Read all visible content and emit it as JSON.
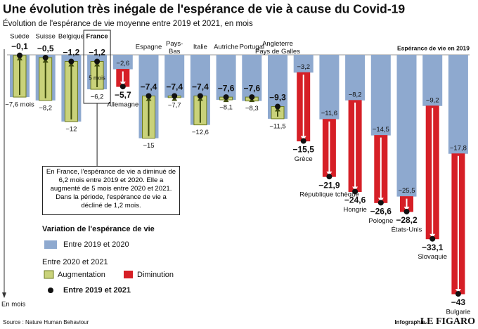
{
  "chart_data": {
    "type": "bar",
    "title": "Une évolution très inégale de l'espérance de vie à cause du Covid-19",
    "subtitle": "Évolution de l'espérance de vie moyenne entre 2019 et 2021, en mois",
    "categories": [
      "Suède",
      "Suisse",
      "Belgique",
      "France",
      "Allemagne",
      "Espagne",
      "Pays-Bas",
      "Italie",
      "Autriche",
      "Portugal",
      "Angleterre Pays de Galles",
      "Grèce",
      "République tchèque",
      "Hongrie",
      "Pologne",
      "États-Unis",
      "Slovaquie",
      "Bulgarie"
    ],
    "series": [
      {
        "name": "Entre 2019 et 2020",
        "color": "#8ea9cf",
        "values": [
          -7.6,
          -8.2,
          -12,
          -6.2,
          -2.6,
          -15,
          -7.7,
          -12.6,
          -8.1,
          -8.3,
          -11.5,
          -3.2,
          -11.6,
          -8.2,
          -14.5,
          -25.5,
          -9.2,
          -17.8
        ],
        "value_labels": [
          "−7,6 mois",
          "−8,2",
          "−12",
          "−6,2",
          "−2,6",
          "−15",
          "−7,7",
          "−12,6",
          "−8,1",
          "−8,3",
          "−11,5",
          "−3,2",
          "−11,6",
          "−8,2",
          "−14,5",
          "−25,5",
          "−9,2",
          "−17,8"
        ]
      },
      {
        "name": "Entre 2019 et 2021",
        "color": "#111111",
        "values": [
          -0.1,
          -0.5,
          -1.2,
          -1.2,
          -5.7,
          -7.4,
          -7.4,
          -7.4,
          -7.6,
          -7.6,
          -9.3,
          -15.5,
          -21.9,
          -24.6,
          -26.6,
          -28.2,
          -33.1,
          -43
        ],
        "value_labels": [
          "−0,1",
          "−0,5",
          "−1,2",
          "−1,2",
          "−5,7",
          "−7,4",
          "−7,4",
          "−7,4",
          "−7,6",
          "−7,6",
          "−9,3",
          "−15,5",
          "−21,9",
          "−24,6",
          "−26,6",
          "−28,2",
          "−33,1",
          "−43"
        ]
      }
    ],
    "ylim": [
      -43,
      0
    ],
    "legend": {
      "title": "Variation de l'espérance de vie",
      "subtitle": "Entre 2020 et 2021",
      "increase": {
        "name": "Augmentation",
        "color": "#c9d27a"
      },
      "decrease": {
        "name": "Diminution",
        "color": "#d61f26"
      }
    },
    "annotations": [
      "5 mois",
      "En France, l'espérance de vie a diminué de 6,2 mois entre 2019 et 2020. Elle a augmenté de 5 mois entre 2020 et 2021. Dans la période, l'espérance de vie a décliné de 1,2 mois."
    ],
    "baseline_label": "Espérance de vie en 2019",
    "y_label": "En mois",
    "source": "Source : Nature Human Behaviour",
    "credit": "Infographie",
    "brand": "LE FIGARO"
  }
}
